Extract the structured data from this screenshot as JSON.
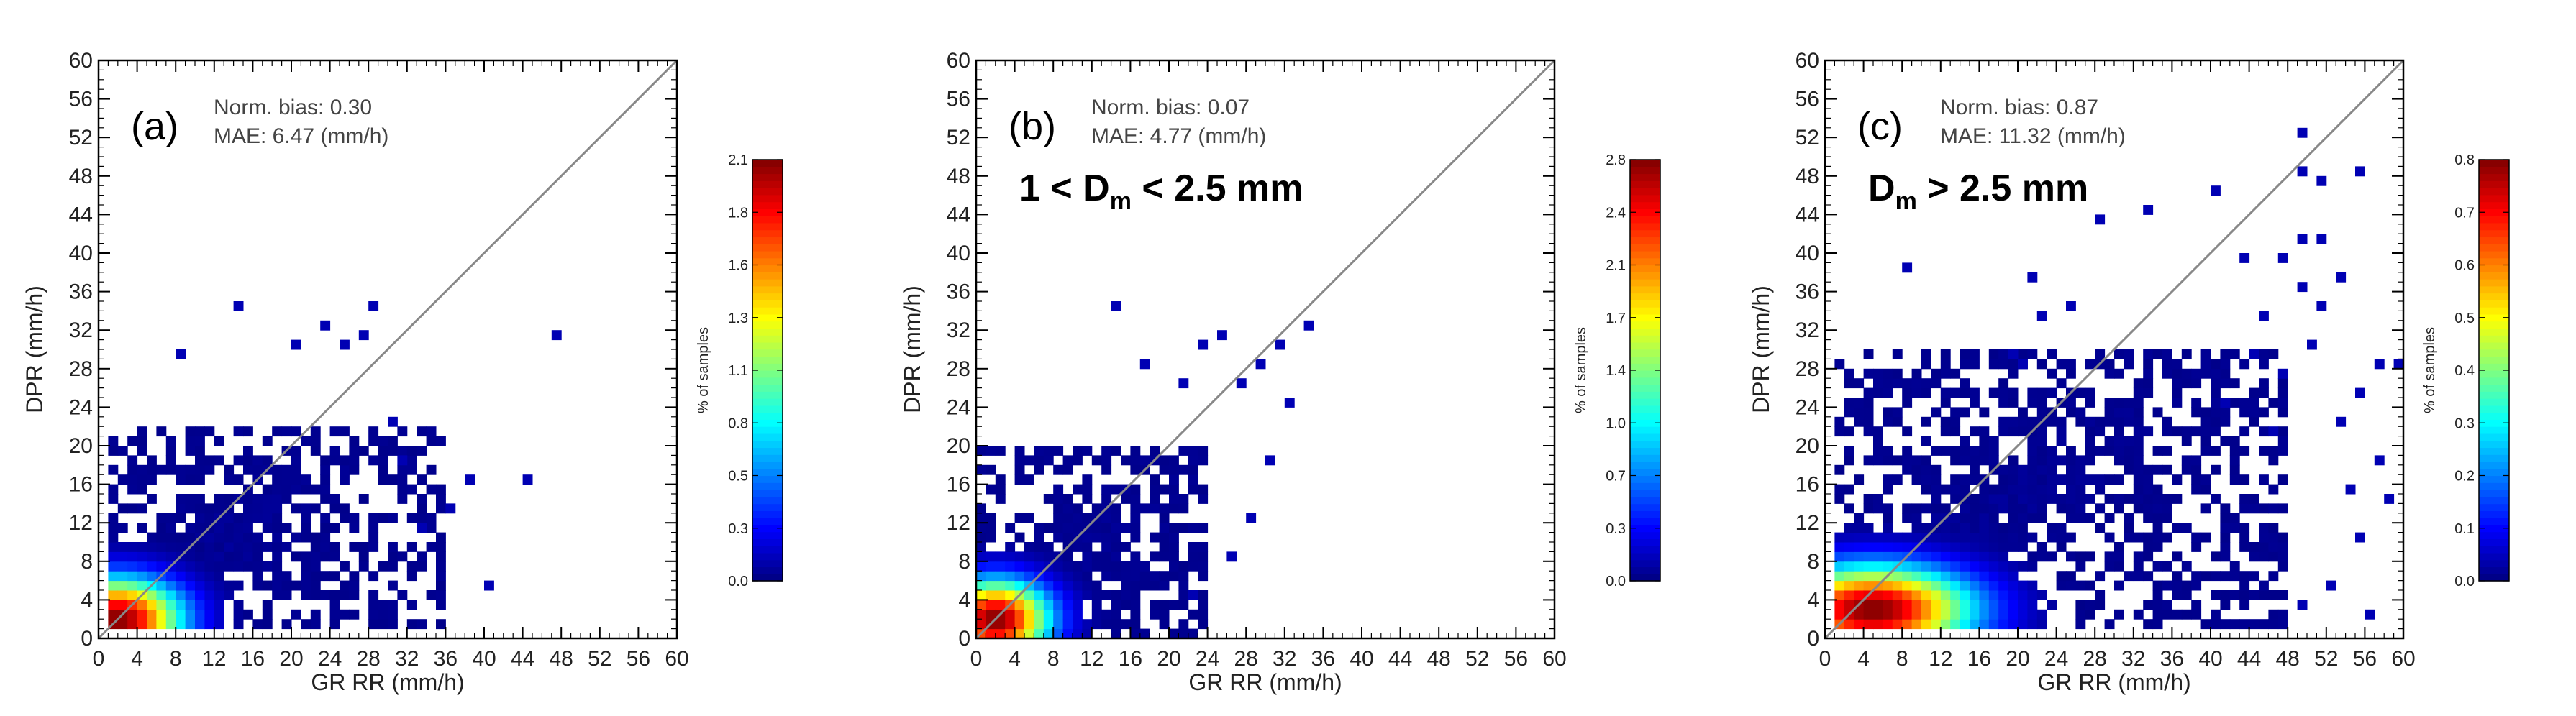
{
  "chart_data": [
    {
      "type": "heatmap",
      "panel_label": "(a)",
      "subset_label": "",
      "stats": {
        "norm_bias": "Norm. bias: 0.30",
        "mae": "MAE: 6.47 (mm/h)"
      },
      "xlabel": "GR RR (mm/h)",
      "ylabel": "DPR (mm/h)",
      "xlim": [
        0,
        60
      ],
      "ylim": [
        0,
        60
      ],
      "xticks": [
        "0",
        "4",
        "8",
        "12",
        "16",
        "20",
        "24",
        "28",
        "32",
        "36",
        "40",
        "44",
        "48",
        "52",
        "56",
        "60"
      ],
      "yticks": [
        "0",
        "4",
        "8",
        "12",
        "16",
        "20",
        "24",
        "28",
        "32",
        "36",
        "40",
        "44",
        "48",
        "52",
        "56",
        "60"
      ],
      "diagonal": "1:1 line",
      "colorbar": {
        "label": "% of samples",
        "min": 0.0,
        "max": 2.1,
        "ticks": [
          "0.0",
          "0.3",
          "0.5",
          "0.8",
          "1.1",
          "1.3",
          "1.6",
          "1.8",
          "2.1"
        ]
      },
      "bin_size": 1,
      "peak_x": 2,
      "peak_y": 2,
      "peak_value": 2.1,
      "spread_x": 6.5,
      "spread_y": 4.2,
      "cutoff_x": 36,
      "cutoff_y": 22,
      "bin_min_x": 1,
      "bin_min_y": 1,
      "outliers": [
        [
          47,
          31
        ],
        [
          44,
          16
        ],
        [
          40,
          5
        ],
        [
          38,
          16
        ],
        [
          28,
          34
        ],
        [
          23,
          32
        ],
        [
          25,
          30
        ],
        [
          27,
          31
        ],
        [
          20,
          30
        ],
        [
          14,
          34
        ],
        [
          8,
          29
        ],
        [
          30,
          22
        ],
        [
          31,
          18
        ],
        [
          33,
          11
        ],
        [
          36,
          13
        ]
      ]
    },
    {
      "type": "heatmap",
      "panel_label": "(b)",
      "subset_label": "1 < D",
      "subset_sub": "m",
      "subset_tail": " < 2.5 mm",
      "stats": {
        "norm_bias": "Norm. bias: 0.07",
        "mae": "MAE: 4.77 (mm/h)"
      },
      "xlabel": "GR RR (mm/h)",
      "ylabel": "DPR (mm/h)",
      "xlim": [
        0,
        60
      ],
      "ylim": [
        0,
        60
      ],
      "xticks": [
        "0",
        "4",
        "8",
        "12",
        "16",
        "20",
        "24",
        "28",
        "32",
        "36",
        "40",
        "44",
        "48",
        "52",
        "56",
        "60"
      ],
      "yticks": [
        "0",
        "4",
        "8",
        "12",
        "16",
        "20",
        "24",
        "28",
        "32",
        "36",
        "40",
        "44",
        "48",
        "52",
        "56",
        "60"
      ],
      "diagonal": "1:1 line",
      "colorbar": {
        "label": "% of samples",
        "min": 0.0,
        "max": 2.8,
        "ticks": [
          "0.0",
          "0.3",
          "0.7",
          "1.0",
          "1.4",
          "1.7",
          "2.1",
          "2.4",
          "2.8"
        ]
      },
      "bin_size": 1,
      "peak_x": 2,
      "peak_y": 2,
      "peak_value": 2.8,
      "spread_x": 5.5,
      "spread_y": 4.0,
      "cutoff_x": 24,
      "cutoff_y": 20,
      "bin_min_x": 0,
      "bin_min_y": 0,
      "outliers": [
        [
          34,
          32
        ],
        [
          31,
          30
        ],
        [
          29,
          28
        ],
        [
          27,
          26
        ],
        [
          25,
          31
        ],
        [
          23,
          30
        ],
        [
          21,
          26
        ],
        [
          17,
          28
        ],
        [
          14,
          34
        ],
        [
          32,
          24
        ],
        [
          30,
          18
        ],
        [
          28,
          12
        ],
        [
          26,
          8
        ],
        [
          22,
          4
        ]
      ]
    },
    {
      "type": "heatmap",
      "panel_label": "(c)",
      "subset_label": "D",
      "subset_sub": "m",
      "subset_tail": " > 2.5 mm",
      "stats": {
        "norm_bias": "Norm. bias: 0.87",
        "mae": "MAE: 11.32 (mm/h)"
      },
      "xlabel": "GR RR (mm/h)",
      "ylabel": "DPR (mm/h)",
      "xlim": [
        0,
        60
      ],
      "ylim": [
        0,
        60
      ],
      "xticks": [
        "0",
        "4",
        "8",
        "12",
        "16",
        "20",
        "24",
        "28",
        "32",
        "36",
        "40",
        "44",
        "48",
        "52",
        "56",
        "60"
      ],
      "yticks": [
        "0",
        "4",
        "8",
        "12",
        "16",
        "20",
        "24",
        "28",
        "32",
        "36",
        "40",
        "44",
        "48",
        "52",
        "56",
        "60"
      ],
      "diagonal": "1:1 line",
      "colorbar": {
        "label": "% of samples",
        "min": 0.0,
        "max": 0.8,
        "ticks": [
          "0.0",
          "0.1",
          "0.2",
          "0.3",
          "0.4",
          "0.5",
          "0.6",
          "0.7",
          "0.8"
        ]
      },
      "bin_size": 1,
      "peak_x": 5,
      "peak_y": 3,
      "peak_value": 0.8,
      "spread_x": 10.0,
      "spread_y": 4.5,
      "cutoff_x": 48,
      "cutoff_y": 30,
      "bin_min_x": 1,
      "bin_min_y": 1,
      "outliers": [
        [
          49,
          52
        ],
        [
          28,
          43
        ],
        [
          33,
          44
        ],
        [
          40,
          46
        ],
        [
          49,
          48
        ],
        [
          51,
          47
        ],
        [
          55,
          48
        ],
        [
          49,
          41
        ],
        [
          51,
          41
        ],
        [
          47,
          39
        ],
        [
          43,
          39
        ],
        [
          53,
          37
        ],
        [
          49,
          36
        ],
        [
          51,
          34
        ],
        [
          57,
          28
        ],
        [
          59,
          28
        ],
        [
          55,
          25
        ],
        [
          53,
          22
        ],
        [
          57,
          18
        ],
        [
          58,
          14
        ],
        [
          56,
          2
        ],
        [
          49,
          3
        ],
        [
          52,
          5
        ],
        [
          8,
          38
        ],
        [
          21,
          37
        ],
        [
          22,
          33
        ],
        [
          25,
          34
        ],
        [
          19,
          29
        ],
        [
          20,
          28
        ],
        [
          44,
          29
        ],
        [
          47,
          27
        ],
        [
          50,
          30
        ],
        [
          45,
          33
        ],
        [
          41,
          24
        ],
        [
          46,
          21
        ],
        [
          54,
          15
        ],
        [
          55,
          10
        ]
      ]
    }
  ]
}
